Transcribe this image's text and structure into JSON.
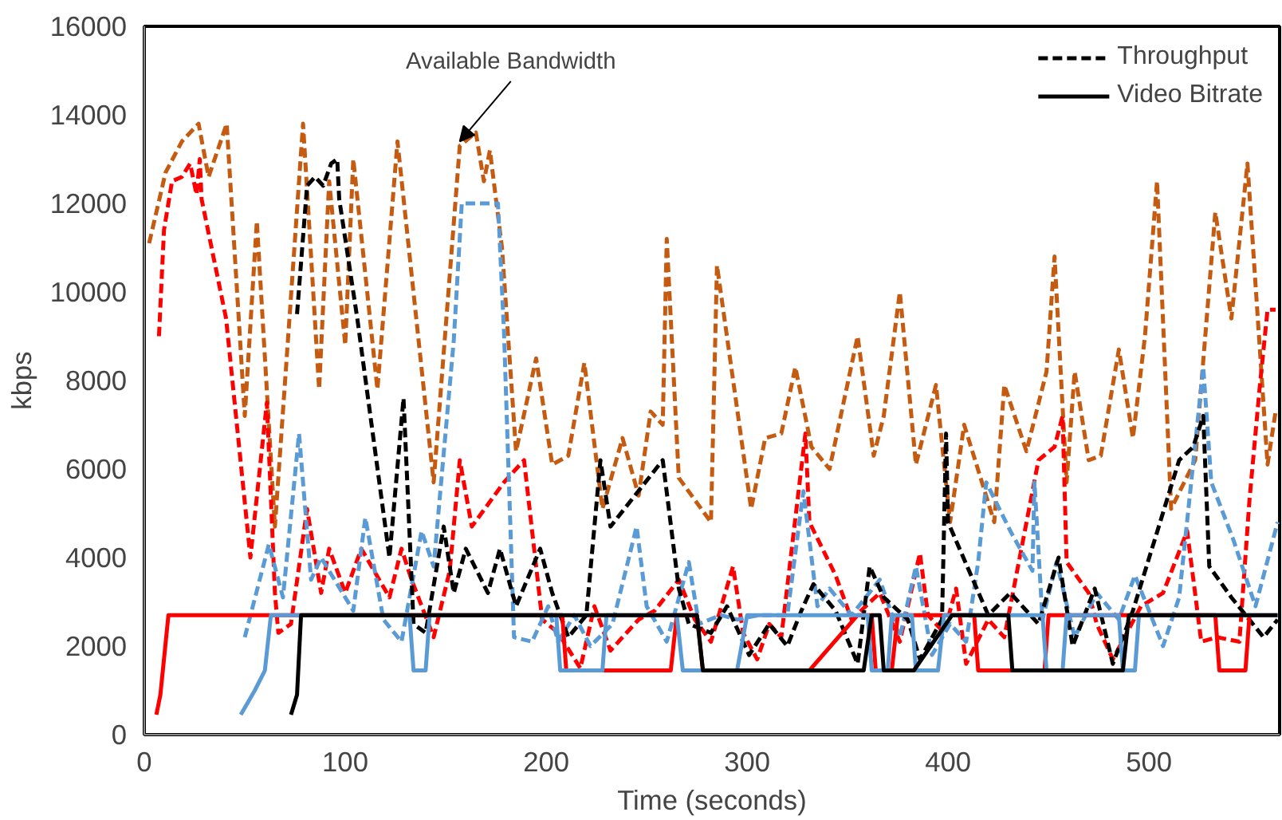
{
  "chart_data": {
    "type": "line",
    "xlabel": "Time (seconds)",
    "ylabel": "kbps",
    "xlim": [
      0,
      565
    ],
    "ylim": [
      0,
      16000
    ],
    "xticks": [
      0,
      100,
      200,
      300,
      400,
      500
    ],
    "yticks": [
      0,
      2000,
      4000,
      6000,
      8000,
      10000,
      12000,
      14000,
      16000
    ],
    "grid": false,
    "legend": "top right",
    "marker": "none",
    "annotations": [
      {
        "text": "Available Bandwidth",
        "x": 157,
        "y": 13400
      }
    ],
    "series": [
      {
        "color": "#c55a11",
        "line_style": "dashed",
        "x": [
          2.4,
          10.6,
          18.7,
          27,
          32,
          41,
          50,
          56,
          65,
          79,
          87,
          92,
          100,
          104,
          116,
          126,
          144,
          157,
          165,
          169,
          172,
          178,
          185,
          195,
          203,
          211,
          219,
          228,
          238,
          246,
          252,
          258,
          260,
          266,
          282,
          285,
          302,
          309,
          317,
          324,
          332,
          341,
          355,
          363,
          368,
          376,
          384,
          394,
          401,
          408,
          423,
          428,
          439,
          449,
          453,
          459,
          463,
          470,
          476,
          485,
          492,
          498,
          504,
          511,
          523,
          533,
          541,
          549,
          559,
          563
        ],
        "values": [
          11100,
          12700,
          13400,
          13800,
          12600,
          13800,
          7200,
          11600,
          4700,
          13800,
          7800,
          12500,
          8800,
          13000,
          7800,
          13400,
          5700,
          13300,
          13600,
          12500,
          13200,
          11000,
          6400,
          8500,
          6100,
          6300,
          8400,
          5100,
          6700,
          5400,
          7300,
          7000,
          11200,
          5800,
          4800,
          10600,
          5100,
          6700,
          6800,
          8300,
          6500,
          6000,
          9000,
          6300,
          7200,
          10000,
          6100,
          7900,
          4800,
          7000,
          4800,
          7900,
          6400,
          8200,
          10800,
          5700,
          8200,
          6200,
          6300,
          8700,
          6700,
          9000,
          12500,
          5100,
          6200,
          11800,
          9400,
          12900,
          6100,
          7300
        ]
      },
      {
        "color": "#ff0000",
        "line_style": "dashed",
        "x": [
          7.3,
          9.8,
          13.8,
          18.7,
          22.8,
          26,
          27.6,
          28.5,
          40.7,
          52.8,
          61,
          65,
          66.7,
          73,
          81,
          88,
          92,
          100,
          108,
          122,
          128,
          133,
          144,
          152,
          157,
          163,
          179,
          189,
          198,
          206,
          217,
          224,
          232,
          246,
          254,
          266,
          274,
          282,
          293,
          298,
          305,
          311,
          317,
          329,
          331,
          344,
          352,
          366,
          376,
          386,
          390,
          398,
          404,
          409,
          420,
          428,
          445,
          453,
          457,
          459,
          470,
          474,
          482,
          496,
          507,
          519,
          526,
          534,
          545,
          550,
          555,
          559,
          563
        ],
        "values": [
          9000,
          11400,
          12500,
          12600,
          12900,
          12200,
          13000,
          12100,
          9400,
          4000,
          7500,
          3200,
          2300,
          2500,
          5100,
          3200,
          4200,
          3200,
          4200,
          3100,
          4200,
          3500,
          2200,
          3700,
          6200,
          4700,
          5700,
          6200,
          2600,
          2300,
          1500,
          2900,
          1900,
          2600,
          2800,
          3500,
          2600,
          2100,
          3800,
          2300,
          1700,
          2500,
          2200,
          6800,
          4800,
          3600,
          2600,
          3200,
          2100,
          4100,
          2700,
          2300,
          3300,
          1600,
          2600,
          2200,
          6200,
          6500,
          7200,
          3900,
          3200,
          2500,
          1700,
          2900,
          3200,
          4600,
          2100,
          2200,
          2100,
          5300,
          7800,
          9600,
          9600
        ]
      },
      {
        "color": "#5b9bd5",
        "line_style": "dashed",
        "x": [
          50,
          62,
          69,
          77,
          83,
          88,
          104,
          110,
          119,
          128,
          138,
          144,
          154,
          158,
          176,
          179,
          184,
          193,
          201,
          206,
          214,
          222,
          233,
          245,
          250,
          260,
          271,
          276,
          287,
          295,
          306,
          320,
          328,
          335,
          341,
          352,
          366,
          376,
          384,
          392,
          401,
          409,
          415,
          419,
          431,
          442,
          443,
          447,
          454,
          463,
          474,
          485,
          493,
          507,
          515,
          527,
          531,
          542,
          553,
          564
        ],
        "values": [
          2200,
          4300,
          3100,
          6800,
          3500,
          4000,
          2800,
          4900,
          2600,
          2100,
          4600,
          3800,
          8900,
          12000,
          12000,
          9100,
          2200,
          2100,
          2900,
          2100,
          2700,
          2000,
          2500,
          4700,
          2900,
          2100,
          3900,
          2500,
          2700,
          2600,
          2700,
          2700,
          5500,
          2900,
          3300,
          2700,
          3500,
          2200,
          3800,
          1800,
          2500,
          2100,
          3900,
          5700,
          4600,
          3700,
          5700,
          2600,
          3900,
          2200,
          3200,
          2600,
          3600,
          2000,
          3100,
          8300,
          5700,
          4400,
          2900,
          4800
        ]
      },
      {
        "name": "Throughput",
        "color": "#000000",
        "line_style": "dashed",
        "x": [
          76,
          81,
          85,
          89,
          93,
          96,
          97,
          106,
          122,
          129,
          134,
          140,
          149,
          154,
          160,
          171,
          177,
          185,
          197,
          203,
          211,
          220,
          227,
          232,
          258,
          266,
          271,
          282,
          290,
          301,
          311,
          320,
          327,
          333,
          344,
          355,
          361,
          368,
          380,
          386,
          397,
          399,
          400,
          420,
          431,
          445,
          455,
          462,
          473,
          482,
          492,
          515,
          522,
          527,
          530,
          541,
          557,
          564
        ],
        "values": [
          9500,
          12400,
          12600,
          12400,
          12900,
          13000,
          12100,
          9400,
          4000,
          7600,
          2500,
          2300,
          4700,
          3200,
          4200,
          3200,
          4200,
          2900,
          4200,
          3200,
          2200,
          2700,
          6200,
          4700,
          6200,
          3300,
          2500,
          2300,
          2900,
          1800,
          2500,
          2000,
          2800,
          3400,
          2800,
          1600,
          3800,
          3100,
          2600,
          1700,
          2600,
          6800,
          4800,
          2700,
          3200,
          2500,
          4000,
          2000,
          3300,
          1600,
          2800,
          6200,
          6500,
          7200,
          3800,
          3100,
          2200,
          2600
        ]
      },
      {
        "color": "#ff0000",
        "line_style": "solid",
        "x": [
          6,
          8,
          12,
          208,
          210,
          262,
          265,
          275,
          278,
          331,
          355,
          362,
          364,
          372,
          375,
          413,
          415,
          448,
          450,
          533,
          535,
          548,
          550
        ],
        "values": [
          450,
          900,
          2700,
          2700,
          1450,
          1450,
          2700,
          2700,
          1450,
          1450,
          2700,
          2700,
          1450,
          1450,
          2700,
          2700,
          1450,
          1450,
          2700,
          2700,
          1450,
          1450,
          2700
        ]
      },
      {
        "color": "#5b9bd5",
        "line_style": "solid",
        "x": [
          48,
          55,
          60,
          63,
          132,
          134,
          140,
          142,
          205,
          207,
          228,
          230,
          265,
          268,
          295,
          300,
          360,
          362,
          370,
          372,
          382,
          384,
          395,
          398,
          447,
          449,
          457,
          459,
          485,
          487,
          493,
          495,
          564
        ],
        "values": [
          450,
          1000,
          1450,
          2700,
          2700,
          1450,
          1450,
          2700,
          2700,
          1450,
          1450,
          2700,
          2700,
          1450,
          1450,
          2700,
          2700,
          1450,
          1450,
          2700,
          2700,
          1450,
          1450,
          2700,
          2700,
          1450,
          1450,
          2700,
          2700,
          1450,
          1450,
          2700,
          2700
        ]
      },
      {
        "name": "Video Bitrate",
        "color": "#000000",
        "line_style": "solid",
        "x": [
          73,
          76,
          78,
          275,
          278,
          358,
          362,
          366,
          368,
          383,
          402,
          430,
          432,
          487,
          490,
          564
        ],
        "values": [
          450,
          900,
          2700,
          2700,
          1450,
          1450,
          2700,
          2700,
          1450,
          1450,
          2700,
          2700,
          1450,
          1450,
          2700,
          2700
        ]
      }
    ]
  }
}
